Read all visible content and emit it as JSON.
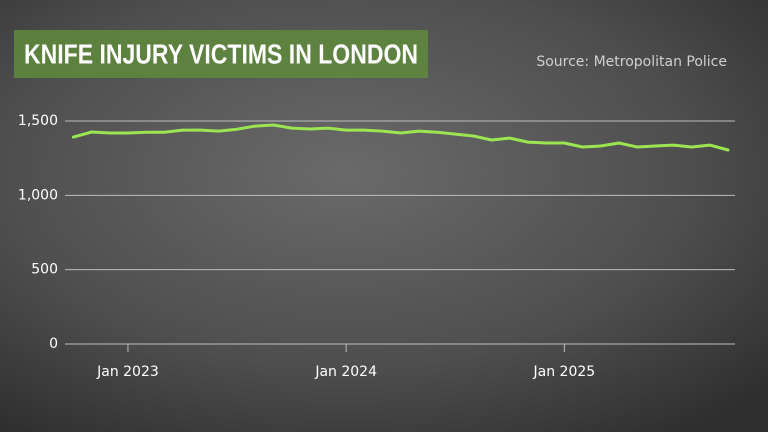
{
  "chart_data": {
    "type": "line",
    "title": "KNIFE INJURY VICTIMS IN LONDON",
    "source": "Source: Metropolitan Police",
    "x": [
      "2022-10",
      "2022-11",
      "2022-12",
      "2023-01",
      "2023-02",
      "2023-03",
      "2023-04",
      "2023-05",
      "2023-06",
      "2023-07",
      "2023-08",
      "2023-09",
      "2023-10",
      "2023-11",
      "2023-12",
      "2024-01",
      "2024-02",
      "2024-03",
      "2024-04",
      "2024-05",
      "2024-06",
      "2024-07",
      "2024-08",
      "2024-09",
      "2024-10",
      "2024-11",
      "2024-12",
      "2025-01",
      "2025-02",
      "2025-03",
      "2025-04",
      "2025-05",
      "2025-06",
      "2025-07",
      "2025-08",
      "2025-09",
      "2025-10"
    ],
    "values": [
      1392,
      1426,
      1419,
      1419,
      1425,
      1425,
      1439,
      1439,
      1432,
      1445,
      1466,
      1473,
      1452,
      1446,
      1452,
      1439,
      1439,
      1432,
      1419,
      1432,
      1425,
      1412,
      1399,
      1372,
      1385,
      1358,
      1352,
      1352,
      1325,
      1332,
      1352,
      1325,
      1332,
      1338,
      1325,
      1338,
      1305
    ],
    "color": "#9be552",
    "xlim": [
      "2022-10",
      "2025-10"
    ],
    "xticks": [
      {
        "value": "2023-01",
        "label": "Jan 2023"
      },
      {
        "value": "2024-01",
        "label": "Jan 2024"
      },
      {
        "value": "2025-01",
        "label": "Jan 2025"
      }
    ],
    "ylim": [
      0,
      1500
    ],
    "yticks": [
      0,
      500,
      {
        "value": 1000,
        "label": "1,000"
      },
      {
        "value": 1500,
        "label": "1,500"
      }
    ],
    "grid": true
  }
}
